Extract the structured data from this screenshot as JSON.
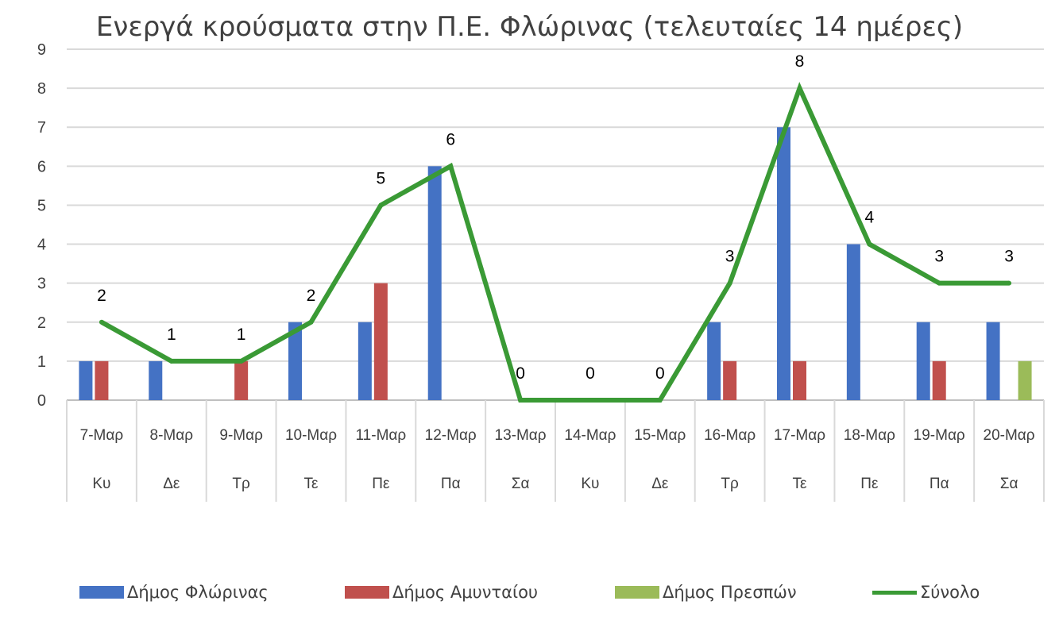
{
  "chart_data": {
    "type": "bar",
    "title": "Ενεργά κρούσματα στην Π.Ε. Φλώρινας (τελευταίες 14 ημέρες)",
    "categories": [
      "7-Μαρ",
      "8-Μαρ",
      "9-Μαρ",
      "10-Μαρ",
      "11-Μαρ",
      "12-Μαρ",
      "13-Μαρ",
      "14-Μαρ",
      "15-Μαρ",
      "16-Μαρ",
      "17-Μαρ",
      "18-Μαρ",
      "19-Μαρ",
      "20-Μαρ"
    ],
    "days": [
      "Κυ",
      "Δε",
      "Τρ",
      "Τε",
      "Πε",
      "Πα",
      "Σα",
      "Κυ",
      "Δε",
      "Τρ",
      "Τε",
      "Πε",
      "Πα",
      "Σα"
    ],
    "ylim": [
      0,
      9
    ],
    "yticks": [
      0,
      1,
      2,
      3,
      4,
      5,
      6,
      7,
      8,
      9
    ],
    "grid": true,
    "legend_position": "bottom",
    "series": [
      {
        "name": "Δήμος Φλώρινας",
        "type": "bar",
        "color": "#4472C4",
        "values": [
          1,
          1,
          0,
          2,
          2,
          6,
          0,
          0,
          0,
          2,
          7,
          4,
          2,
          2
        ]
      },
      {
        "name": "Δήμος Αμυνταίου",
        "type": "bar",
        "color": "#C0504D",
        "values": [
          1,
          0,
          1,
          0,
          3,
          0,
          0,
          0,
          0,
          1,
          1,
          0,
          1,
          0
        ]
      },
      {
        "name": "Δήμος Πρεσπών",
        "type": "bar",
        "color": "#9BBB59",
        "values": [
          0,
          0,
          0,
          0,
          0,
          0,
          0,
          0,
          0,
          0,
          0,
          0,
          0,
          1
        ]
      },
      {
        "name": "Σύνολο",
        "type": "line",
        "color": "#3A9A35",
        "values": [
          2,
          1,
          1,
          2,
          5,
          6,
          0,
          0,
          0,
          3,
          8,
          4,
          3,
          3
        ]
      }
    ],
    "data_labels": [
      "2",
      "1",
      "1",
      "2",
      "5",
      "6",
      "0",
      "0",
      "0",
      "3",
      "8",
      "4",
      "3",
      "3"
    ]
  }
}
